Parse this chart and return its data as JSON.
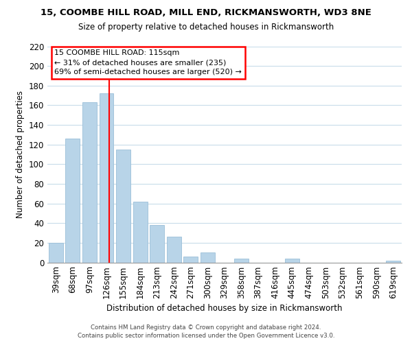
{
  "title": "15, COOMBE HILL ROAD, MILL END, RICKMANSWORTH, WD3 8NE",
  "subtitle": "Size of property relative to detached houses in Rickmansworth",
  "xlabel": "Distribution of detached houses by size in Rickmansworth",
  "ylabel": "Number of detached properties",
  "categories": [
    "39sqm",
    "68sqm",
    "97sqm",
    "126sqm",
    "155sqm",
    "184sqm",
    "213sqm",
    "242sqm",
    "271sqm",
    "300sqm",
    "329sqm",
    "358sqm",
    "387sqm",
    "416sqm",
    "445sqm",
    "474sqm",
    "503sqm",
    "532sqm",
    "561sqm",
    "590sqm",
    "619sqm"
  ],
  "values": [
    20,
    126,
    163,
    172,
    115,
    62,
    38,
    26,
    6,
    10,
    0,
    4,
    0,
    0,
    4,
    0,
    0,
    0,
    0,
    0,
    2
  ],
  "bar_color": "#b8d4e8",
  "red_line_x": 3.15,
  "annotation_title": "15 COOMBE HILL ROAD: 115sqm",
  "annotation_line1": "← 31% of detached houses are smaller (235)",
  "annotation_line2": "69% of semi-detached houses are larger (520) →",
  "ylim": [
    0,
    220
  ],
  "yticks": [
    0,
    20,
    40,
    60,
    80,
    100,
    120,
    140,
    160,
    180,
    200,
    220
  ],
  "footer_line1": "Contains HM Land Registry data © Crown copyright and database right 2024.",
  "footer_line2": "Contains public sector information licensed under the Open Government Licence v3.0.",
  "background_color": "#ffffff",
  "grid_color": "#c8dcea"
}
